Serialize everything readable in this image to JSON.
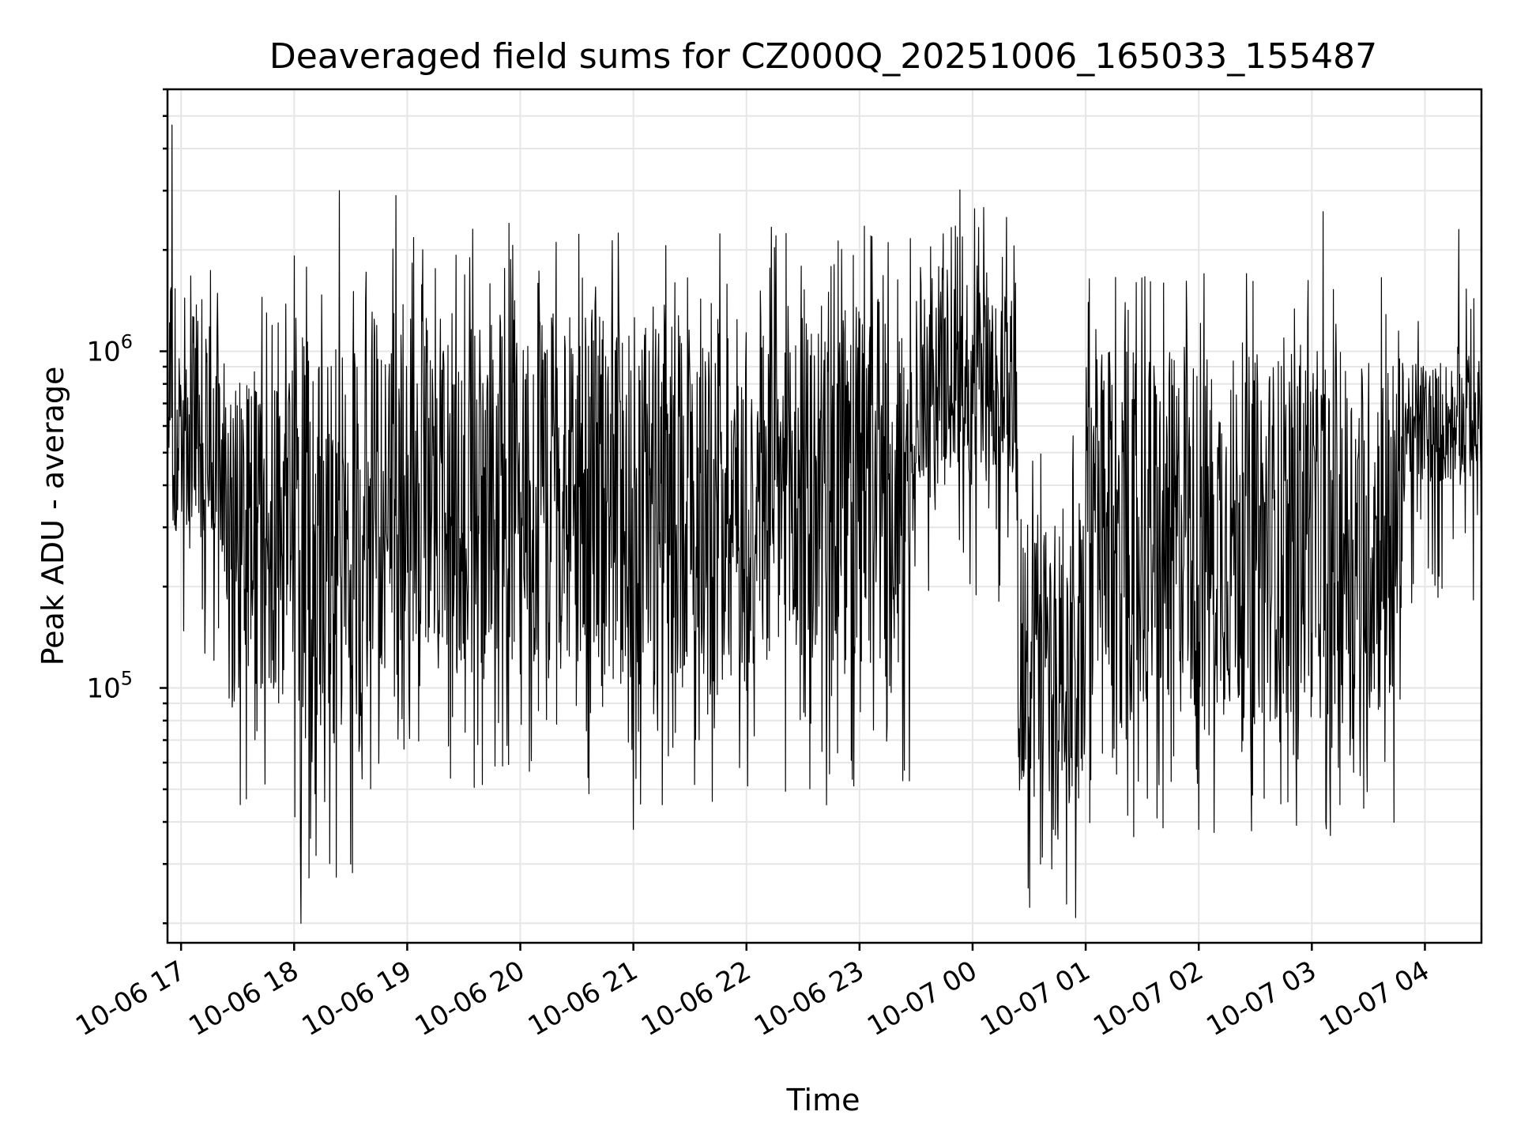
{
  "chart_data": {
    "type": "line",
    "title": "Deaveraged field sums for CZ000Q_20251006_165033_155487",
    "xlabel": "Time",
    "ylabel": "Peak ADU - average",
    "yscale": "log",
    "ylim": [
      17500,
      6000000
    ],
    "xlim_hours_from_1700": [
      -0.12,
      11.5
    ],
    "grid": true,
    "legend": "none",
    "x_ticks": [
      {
        "hour": 0,
        "label": "10-06 17"
      },
      {
        "hour": 1,
        "label": "10-06 18"
      },
      {
        "hour": 2,
        "label": "10-06 19"
      },
      {
        "hour": 3,
        "label": "10-06 20"
      },
      {
        "hour": 4,
        "label": "10-06 21"
      },
      {
        "hour": 5,
        "label": "10-06 22"
      },
      {
        "hour": 6,
        "label": "10-06 23"
      },
      {
        "hour": 7,
        "label": "10-07 00"
      },
      {
        "hour": 8,
        "label": "10-07 01"
      },
      {
        "hour": 9,
        "label": "10-07 02"
      },
      {
        "hour": 10,
        "label": "10-07 03"
      },
      {
        "hour": 11,
        "label": "10-07 04"
      }
    ],
    "y_ticks": [
      {
        "value": 100000,
        "base": "10",
        "exp": "5"
      },
      {
        "value": 1000000,
        "base": "10",
        "exp": "6"
      }
    ],
    "series": [
      {
        "name": "field sums",
        "color": "#000000",
        "note": "dense noisy series; envelope per time segment (hours from 17:00, typical low/high)",
        "envelope": [
          {
            "t0": -0.12,
            "t1": 0.4,
            "low": 250000,
            "high": 1600000
          },
          {
            "t0": 0.4,
            "t1": 1.0,
            "low": 90000,
            "high": 900000
          },
          {
            "t0": 1.0,
            "t1": 1.6,
            "low": 60000,
            "high": 1100000
          },
          {
            "t0": 1.6,
            "t1": 3.5,
            "low": 110000,
            "high": 1300000
          },
          {
            "t0": 3.5,
            "t1": 6.5,
            "low": 100000,
            "high": 1400000
          },
          {
            "t0": 6.5,
            "t1": 7.4,
            "low": 400000,
            "high": 1800000
          },
          {
            "t0": 7.4,
            "t1": 8.0,
            "low": 45000,
            "high": 350000
          },
          {
            "t0": 8.0,
            "t1": 10.8,
            "low": 80000,
            "high": 1000000
          },
          {
            "t0": 10.8,
            "t1": 11.5,
            "low": 400000,
            "high": 950000
          }
        ],
        "spikes": [
          {
            "hour": -0.08,
            "value": 4700000
          },
          {
            "hour": 1.4,
            "value": 3000000
          },
          {
            "hour": 1.9,
            "value": 2900000
          },
          {
            "hour": 2.9,
            "value": 2400000
          },
          {
            "hour": 6.1,
            "value": 2200000
          },
          {
            "hour": 7.3,
            "value": 2500000
          },
          {
            "hour": 10.1,
            "value": 2600000
          },
          {
            "hour": 11.3,
            "value": 2300000
          }
        ],
        "dips": [
          {
            "hour": 1.06,
            "value": 20000
          },
          {
            "hour": 1.5,
            "value": 30000
          },
          {
            "hour": 7.6,
            "value": 30000
          },
          {
            "hour": 7.7,
            "value": 29000
          },
          {
            "hour": 4.0,
            "value": 38000
          },
          {
            "hour": 9.0,
            "value": 38000
          }
        ]
      }
    ]
  }
}
